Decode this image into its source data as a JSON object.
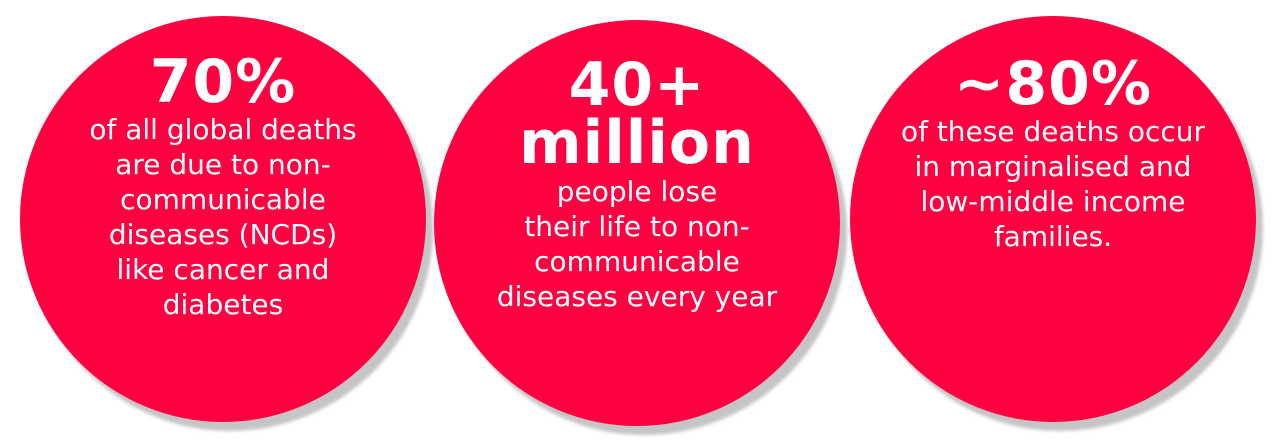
{
  "colors": {
    "circle": "#ff0040",
    "text": "#ffffff",
    "background": "#ffffff"
  },
  "stats": [
    {
      "figure": "70%",
      "description": "of all global deaths\nare due to non-\ncommunicable\ndiseases (NCDs)\nlike cancer and\ndiabetes"
    },
    {
      "figure": "40+\nmillion",
      "description": "people lose\ntheir life to non-\ncommunicable\ndiseases every year"
    },
    {
      "figure": "~80%",
      "description": "of these deaths occur\nin marginalised and\nlow-middle income\nfamilies."
    }
  ]
}
